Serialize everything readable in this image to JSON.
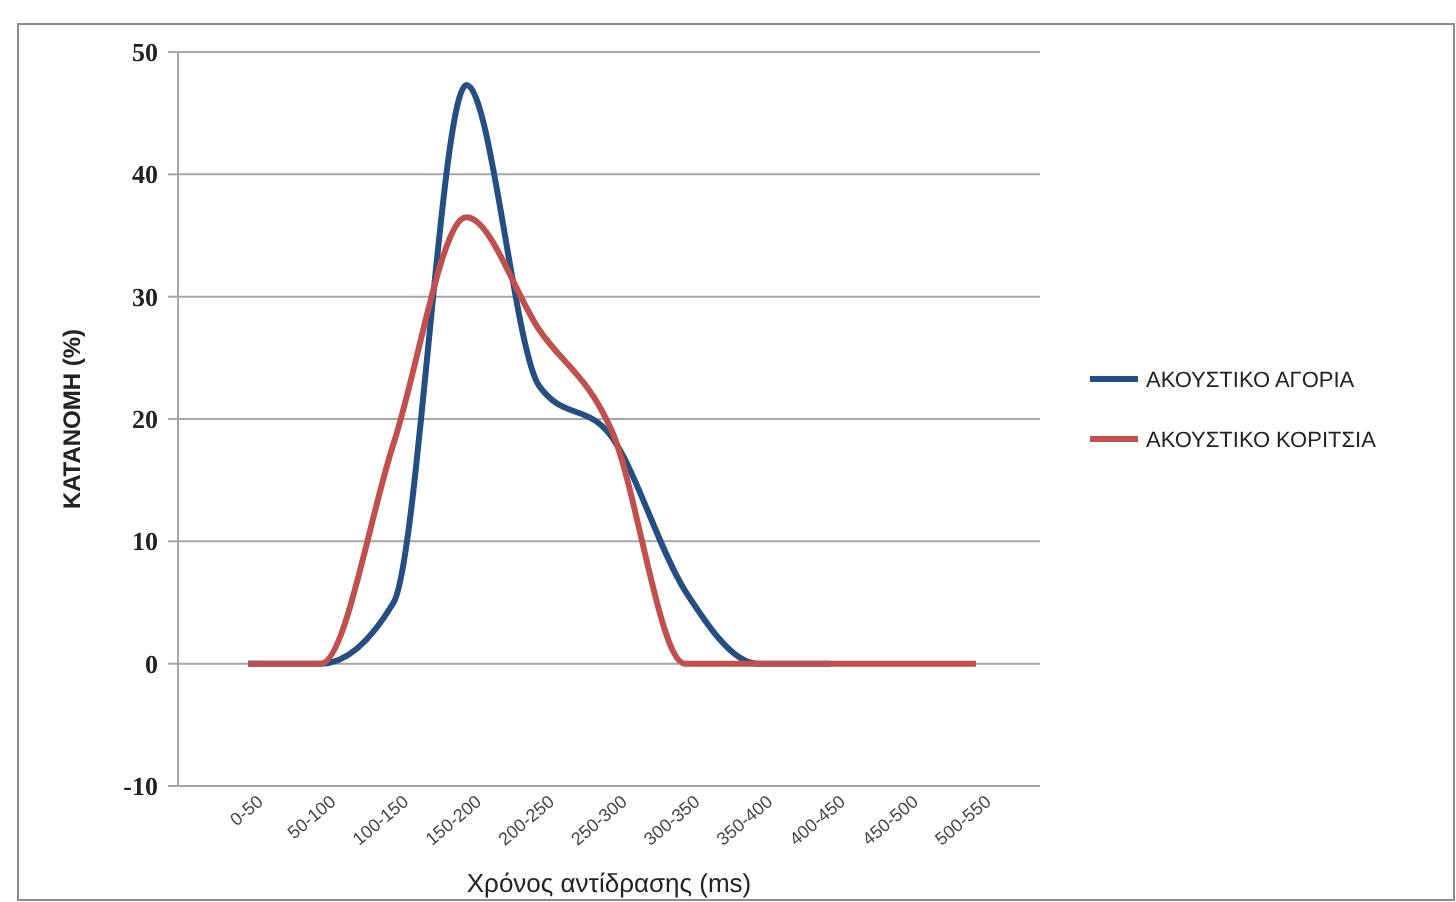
{
  "chart_data": {
    "type": "line",
    "xlabel": "Χρόνος αντίδρασης (ms)",
    "ylabel": "ΚΑΤΑΝΟΜΗ (%)",
    "categories": [
      "0-50",
      "50-100",
      "100-150",
      "150-200",
      "200-250",
      "250-300",
      "300-350",
      "350-400",
      "400-450",
      "450-500",
      "500-550"
    ],
    "series": [
      {
        "name": "ΑΚΟΥΣΤΙΚΟ ΑΓΟΡΙΑ",
        "color": "#254f82",
        "values": [
          0,
          0,
          5,
          47.3,
          22.7,
          18.5,
          6,
          0,
          0,
          null,
          null
        ]
      },
      {
        "name": "ΑΚΟΥΣΤΙΚΟ ΚΟΡΙΤΣΙΑ",
        "color": "#c0504d",
        "values": [
          0,
          0,
          18,
          36.5,
          27.3,
          19,
          0,
          0,
          0,
          0,
          0
        ]
      }
    ],
    "ylim": [
      -10,
      50
    ],
    "yticks": [
      -10,
      0,
      10,
      20,
      30,
      40,
      50
    ],
    "grid": "y",
    "legend": "right",
    "marker": "none",
    "line_style": "solid"
  }
}
